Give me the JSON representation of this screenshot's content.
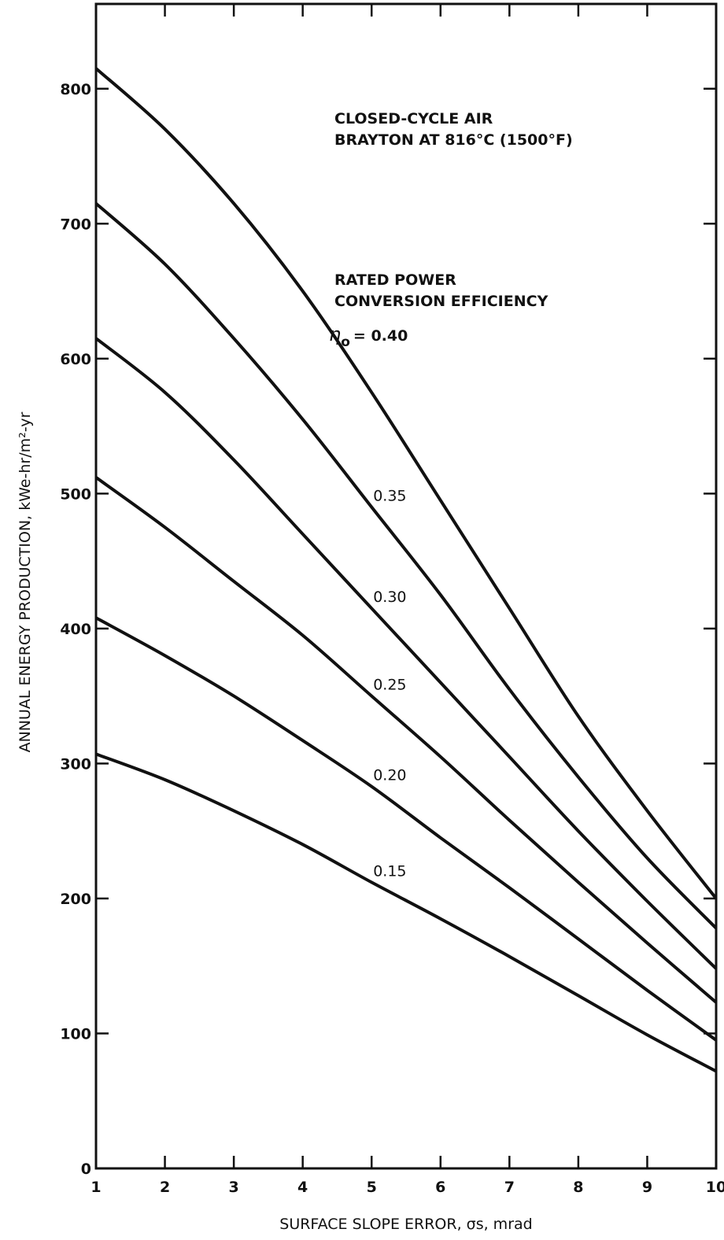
{
  "chart_data": {
    "type": "line",
    "xlabel": "SURFACE SLOPE ERROR, σs, mrad",
    "ylabel": "ANNUAL ENERGY PRODUCTION, kWe-hr/m²-yr",
    "xlim": [
      1,
      10
    ],
    "ylim": [
      0,
      850
    ],
    "x_ticks": [
      1,
      2,
      3,
      4,
      5,
      6,
      7,
      8,
      9,
      10
    ],
    "y_ticks": [
      0,
      100,
      200,
      300,
      400,
      500,
      600,
      700,
      800
    ],
    "grid": false,
    "annotations": {
      "cycle_line1": "CLOSED-CYCLE AIR",
      "cycle_line2": "BRAYTON AT 816°C (1500°F)",
      "rated_line1": "RATED POWER",
      "rated_line2": "CONVERSION EFFICIENCY",
      "eta_symbol": "η",
      "eta_sub": "o",
      "eta_value": "= 0.40"
    },
    "series": [
      {
        "label": "",
        "x": [
          1,
          2,
          3,
          4,
          5,
          6,
          7,
          8,
          9,
          10
        ],
        "values": [
          815,
          770,
          715,
          650,
          575,
          495,
          415,
          335,
          265,
          200
        ]
      },
      {
        "label": "0.35",
        "x": [
          1,
          2,
          3,
          4,
          5,
          6,
          7,
          8,
          9,
          10
        ],
        "values": [
          715,
          670,
          615,
          555,
          490,
          425,
          355,
          290,
          230,
          178
        ]
      },
      {
        "label": "0.30",
        "x": [
          1,
          2,
          3,
          4,
          5,
          6,
          7,
          8,
          9,
          10
        ],
        "values": [
          615,
          575,
          525,
          470,
          415,
          360,
          305,
          250,
          198,
          148
        ]
      },
      {
        "label": "0.25",
        "x": [
          1,
          2,
          3,
          4,
          5,
          6,
          7,
          8,
          9,
          10
        ],
        "values": [
          512,
          475,
          435,
          395,
          350,
          305,
          258,
          212,
          167,
          123
        ]
      },
      {
        "label": "0.20",
        "x": [
          1,
          2,
          3,
          4,
          5,
          6,
          7,
          8,
          9,
          10
        ],
        "values": [
          408,
          380,
          350,
          317,
          283,
          245,
          208,
          170,
          132,
          95
        ]
      },
      {
        "label": "0.15",
        "x": [
          1,
          2,
          3,
          4,
          5,
          6,
          7,
          8,
          9,
          10
        ],
        "values": [
          307,
          288,
          265,
          240,
          212,
          185,
          157,
          128,
          99,
          72
        ]
      }
    ]
  }
}
